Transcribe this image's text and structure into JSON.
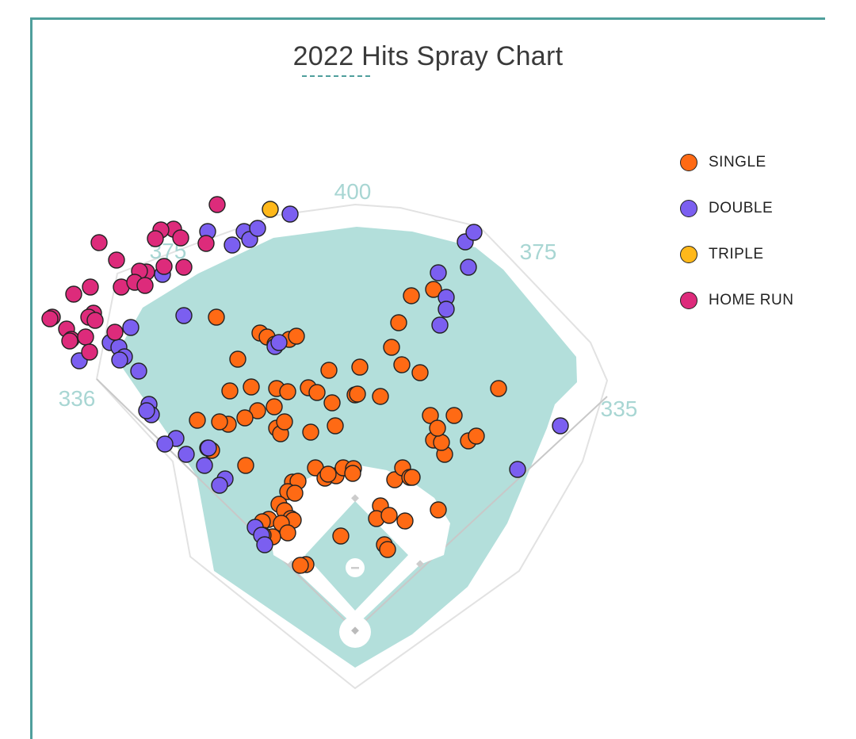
{
  "chart_data": {
    "type": "scatter",
    "title": "2022 Hits Spray Chart",
    "field": {
      "fence_distances": [
        {
          "label": "336"
        },
        {
          "label": "375"
        },
        {
          "label": "400"
        },
        {
          "label": "375"
        },
        {
          "label": "335"
        }
      ]
    },
    "legend_placement": "right",
    "series": [
      {
        "name": "SINGLE",
        "color": "#ff6a14",
        "points": [
          [
            273,
            400
          ],
          [
            328,
            420
          ],
          [
            337,
            425
          ],
          [
            365,
            428
          ],
          [
            374,
            424
          ],
          [
            347,
            434
          ],
          [
            300,
            453
          ],
          [
            290,
            493
          ],
          [
            317,
            488
          ],
          [
            349,
            490
          ],
          [
            363,
            494
          ],
          [
            389,
            489
          ],
          [
            400,
            495
          ],
          [
            415,
            467
          ],
          [
            454,
            463
          ],
          [
            448,
            498
          ],
          [
            451,
            497
          ],
          [
            480,
            500
          ],
          [
            419,
            508
          ],
          [
            423,
            537
          ],
          [
            392,
            545
          ],
          [
            349,
            540
          ],
          [
            354,
            547
          ],
          [
            359,
            532
          ],
          [
            346,
            513
          ],
          [
            325,
            518
          ],
          [
            309,
            527
          ],
          [
            288,
            535
          ],
          [
            277,
            532
          ],
          [
            249,
            530
          ],
          [
            267,
            568
          ],
          [
            262,
            565
          ],
          [
            310,
            587
          ],
          [
            398,
            590
          ],
          [
            410,
            603
          ],
          [
            424,
            600
          ],
          [
            433,
            590
          ],
          [
            446,
            591
          ],
          [
            445,
            597
          ],
          [
            369,
            608
          ],
          [
            376,
            607
          ],
          [
            363,
            620
          ],
          [
            372,
            622
          ],
          [
            352,
            636
          ],
          [
            359,
            644
          ],
          [
            339,
            655
          ],
          [
            367,
            654
          ],
          [
            370,
            656
          ],
          [
            355,
            660
          ],
          [
            331,
            658
          ],
          [
            363,
            672
          ],
          [
            344,
            677
          ],
          [
            332,
            675
          ],
          [
            414,
            598
          ],
          [
            498,
            605
          ],
          [
            508,
            590
          ],
          [
            517,
            602
          ],
          [
            520,
            602
          ],
          [
            519,
            373
          ],
          [
            547,
            365
          ],
          [
            503,
            407
          ],
          [
            494,
            438
          ],
          [
            507,
            460
          ],
          [
            530,
            470
          ],
          [
            543,
            524
          ],
          [
            573,
            524
          ],
          [
            547,
            555
          ],
          [
            561,
            573
          ],
          [
            557,
            558
          ],
          [
            591,
            556
          ],
          [
            601,
            550
          ],
          [
            629,
            490
          ],
          [
            553,
            643
          ],
          [
            480,
            638
          ],
          [
            475,
            654
          ],
          [
            491,
            650
          ],
          [
            511,
            657
          ],
          [
            430,
            676
          ],
          [
            485,
            687
          ],
          [
            489,
            693
          ],
          [
            386,
            712
          ],
          [
            379,
            713
          ],
          [
            552,
            540
          ]
        ]
      },
      {
        "name": "DOUBLE",
        "color": "#7b5ff0",
        "points": [
          [
            262,
            292
          ],
          [
            293,
            309
          ],
          [
            308,
            292
          ],
          [
            315,
            302
          ],
          [
            325,
            288
          ],
          [
            366,
            270
          ],
          [
            587,
            305
          ],
          [
            598,
            293
          ],
          [
            553,
            344
          ],
          [
            591,
            337
          ],
          [
            563,
            375
          ],
          [
            563,
            390
          ],
          [
            555,
            410
          ],
          [
            232,
            398
          ],
          [
            205,
            346
          ],
          [
            165,
            413
          ],
          [
            139,
            432
          ],
          [
            150,
            438
          ],
          [
            157,
            450
          ],
          [
            151,
            454
          ],
          [
            100,
            455
          ],
          [
            175,
            468
          ],
          [
            188,
            510
          ],
          [
            191,
            523
          ],
          [
            185,
            518
          ],
          [
            222,
            553
          ],
          [
            208,
            560
          ],
          [
            235,
            573
          ],
          [
            258,
            587
          ],
          [
            263,
            565
          ],
          [
            284,
            604
          ],
          [
            277,
            612
          ],
          [
            347,
            437
          ],
          [
            352,
            432
          ],
          [
            322,
            665
          ],
          [
            330,
            675
          ],
          [
            334,
            687
          ],
          [
            707,
            537
          ],
          [
            653,
            592
          ]
        ]
      },
      {
        "name": "TRIPLE",
        "color": "#ffb81a",
        "points": [
          [
            341,
            264
          ]
        ]
      },
      {
        "name": "HOME RUN",
        "color": "#dd2b7b",
        "points": [
          [
            274,
            258
          ],
          [
            219,
            289
          ],
          [
            203,
            290
          ],
          [
            196,
            301
          ],
          [
            228,
            300
          ],
          [
            260,
            307
          ],
          [
            125,
            306
          ],
          [
            147,
            328
          ],
          [
            207,
            336
          ],
          [
            232,
            337
          ],
          [
            185,
            343
          ],
          [
            176,
            342
          ],
          [
            153,
            362
          ],
          [
            170,
            356
          ],
          [
            183,
            360
          ],
          [
            114,
            362
          ],
          [
            93,
            371
          ],
          [
            118,
            395
          ],
          [
            112,
            400
          ],
          [
            120,
            404
          ],
          [
            66,
            400
          ],
          [
            63,
            402
          ],
          [
            84,
            415
          ],
          [
            90,
            428
          ],
          [
            108,
            425
          ],
          [
            88,
            430
          ],
          [
            145,
            419
          ],
          [
            113,
            444
          ]
        ]
      }
    ]
  }
}
